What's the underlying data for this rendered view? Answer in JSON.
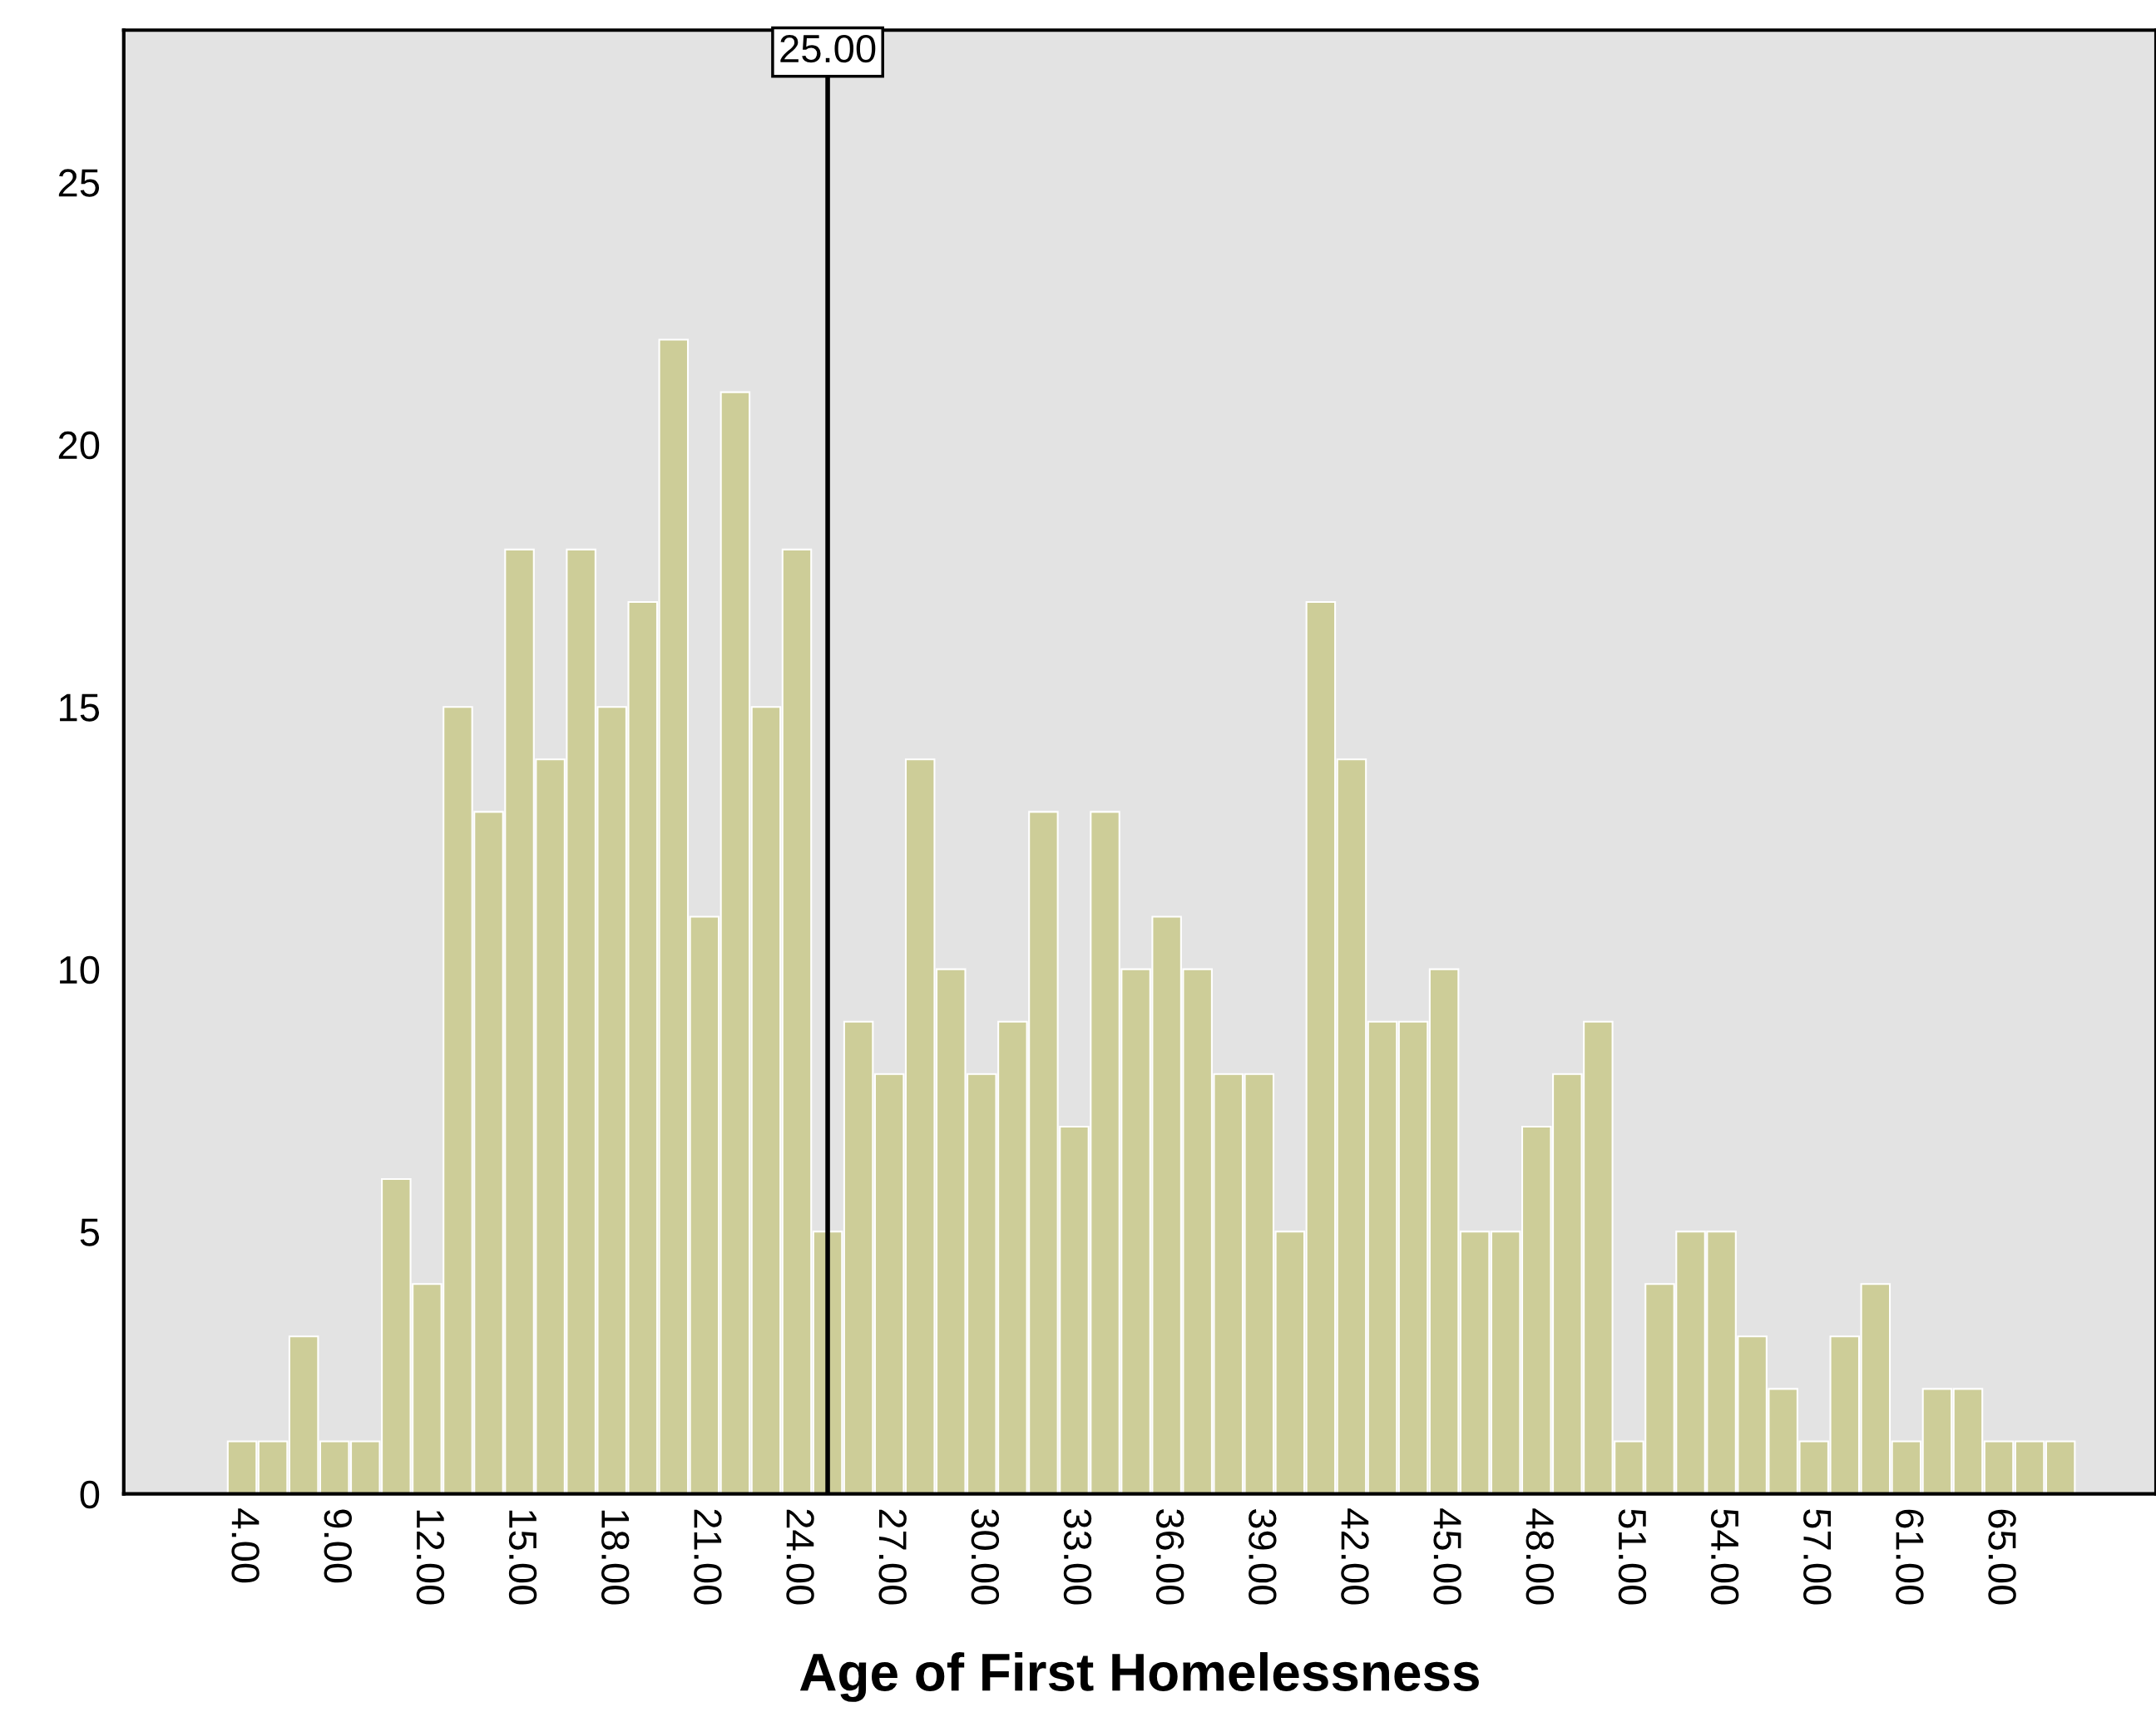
{
  "chart_data": {
    "type": "bar",
    "xlabel": "Age of First Homelessness",
    "categories": [
      "4.00",
      null,
      null,
      "9.00",
      null,
      null,
      "12.00",
      null,
      null,
      "15.00",
      null,
      null,
      "18.00",
      null,
      null,
      "21.00",
      null,
      null,
      "24.00",
      null,
      null,
      "27.00",
      null,
      null,
      "30.00",
      null,
      null,
      "33.00",
      null,
      null,
      "36.00",
      null,
      null,
      "39.00",
      null,
      null,
      "42.00",
      null,
      null,
      "45.00",
      null,
      null,
      "48.00",
      null,
      null,
      "51.00",
      null,
      null,
      "54.00",
      null,
      null,
      "57.00",
      null,
      null,
      "61.00",
      null,
      null,
      "65.00",
      null,
      null
    ],
    "values": [
      1,
      1,
      3,
      1,
      1,
      6,
      4,
      15,
      13,
      18,
      14,
      18,
      15,
      17,
      22,
      11,
      21,
      15,
      18,
      5,
      9,
      8,
      14,
      10,
      8,
      9,
      13,
      7,
      13,
      10,
      11,
      10,
      8,
      8,
      5,
      17,
      14,
      9,
      9,
      10,
      5,
      5,
      7,
      8,
      9,
      1,
      4,
      5,
      5,
      3,
      2,
      1,
      3,
      4,
      1,
      2,
      2,
      1,
      1,
      1
    ],
    "color": "#cdcd98",
    "ylim": [
      0,
      27.9
    ],
    "yticks": [
      0,
      5,
      10,
      15,
      20,
      25
    ],
    "grid": false,
    "annotations": [
      "25.00"
    ]
  }
}
